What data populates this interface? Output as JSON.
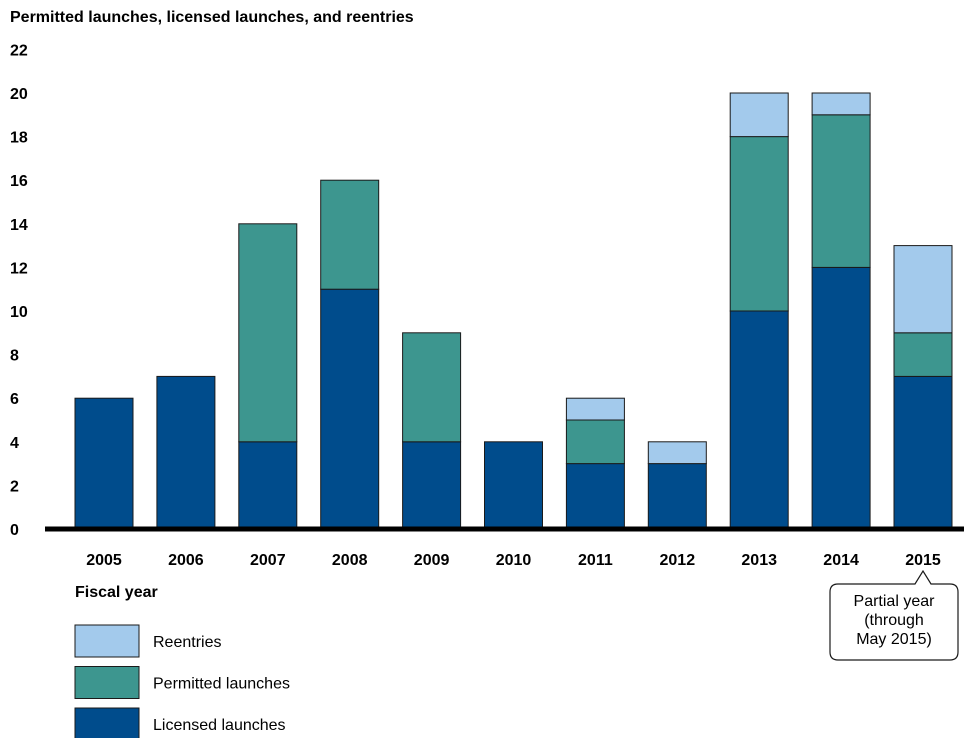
{
  "chart_data": {
    "type": "bar",
    "stacked": true,
    "title": "Permitted launches, licensed launches, and reentries",
    "xlabel": "Fiscal year",
    "ylabel": "",
    "ylim": [
      0,
      22
    ],
    "yticks": [
      0,
      2,
      4,
      6,
      8,
      10,
      12,
      14,
      16,
      18,
      20,
      22
    ],
    "grid": false,
    "legend_position": "bottom-left",
    "categories": [
      "2005",
      "2006",
      "2007",
      "2008",
      "2009",
      "2010",
      "2011",
      "2012",
      "2013",
      "2014",
      "2015"
    ],
    "series": [
      {
        "name": "Licensed launches",
        "color": "#004C8C",
        "values": [
          6,
          7,
          4,
          11,
          4,
          4,
          3,
          3,
          10,
          12,
          7
        ]
      },
      {
        "name": "Permitted launches",
        "color": "#3D968F",
        "values": [
          0,
          0,
          10,
          5,
          5,
          0,
          2,
          0,
          8,
          7,
          2
        ]
      },
      {
        "name": "Reentries",
        "color": "#A3CAEC",
        "values": [
          0,
          0,
          0,
          0,
          0,
          0,
          1,
          1,
          2,
          1,
          4
        ]
      }
    ],
    "legend_order": [
      "Reentries",
      "Permitted launches",
      "Licensed launches"
    ],
    "annotation": {
      "category": "2015",
      "lines": [
        "Partial year",
        "(through",
        "May 2015)"
      ]
    }
  }
}
